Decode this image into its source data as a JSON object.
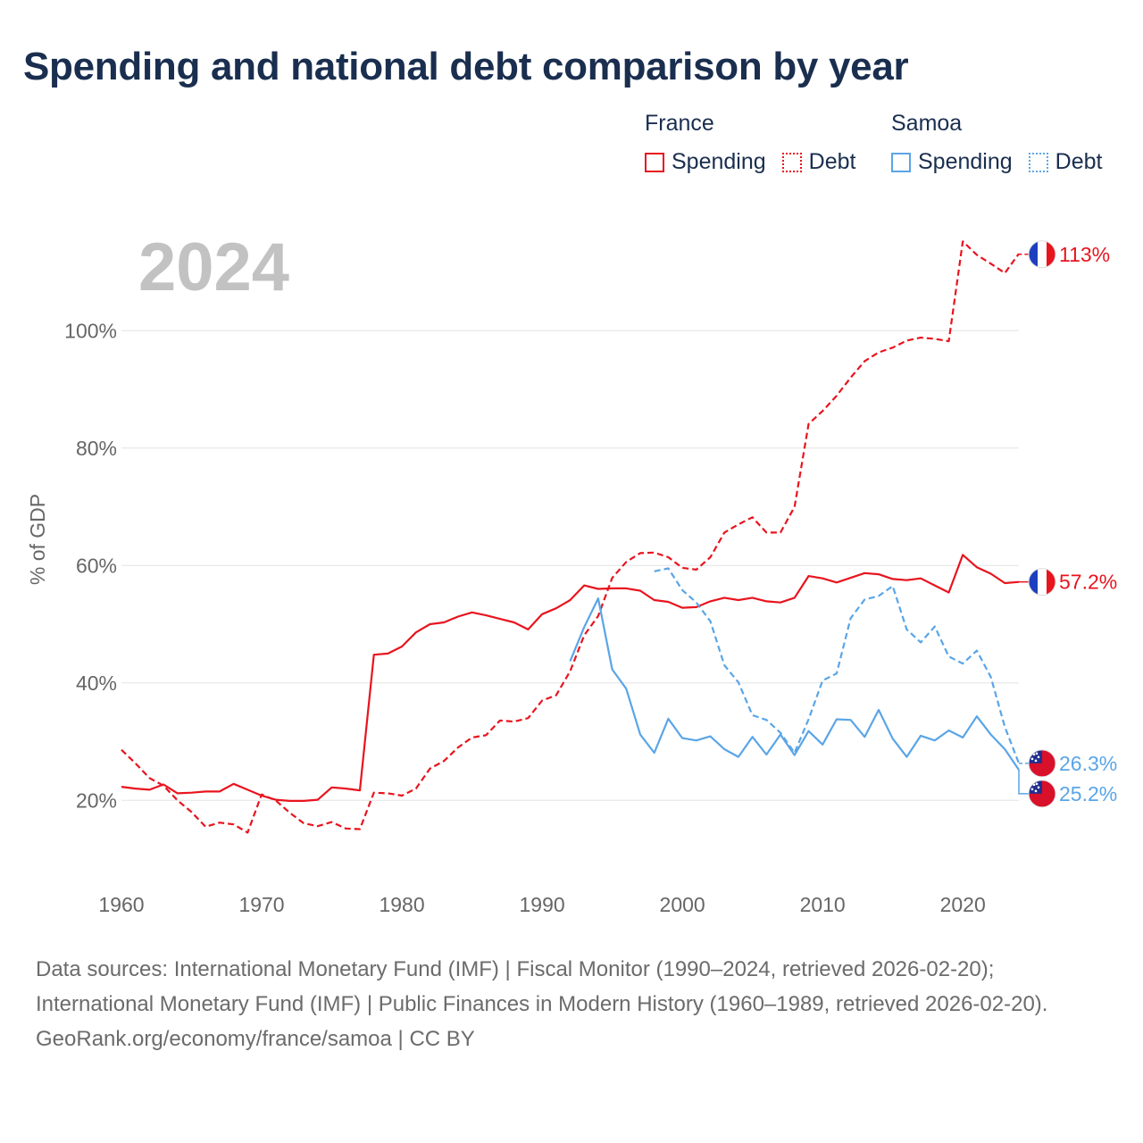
{
  "title": "Spending and national debt comparison by year",
  "legend": {
    "groups": [
      {
        "country": "France",
        "color": "#e8141e",
        "items": [
          "Spending",
          "Debt"
        ]
      },
      {
        "country": "Samoa",
        "color": "#5aa5e6",
        "items": [
          "Spending",
          "Debt"
        ]
      }
    ]
  },
  "year_label": "2024",
  "footer": {
    "sources": "Data sources: International Monetary Fund (IMF) | Fiscal Monitor (1990–2024, retrieved 2026-02-20); International Monetary Fund (IMF) | Public Finances in Modern History (1960–1989, retrieved 2026-02-20).",
    "credit": "GeoRank.org/economy/france/samoa | CC BY"
  },
  "chart_data": {
    "type": "line",
    "title": "Spending and national debt comparison by year",
    "xlabel": "",
    "ylabel": "% of GDP",
    "xlim": [
      1960,
      2024
    ],
    "ylim": [
      8,
      118
    ],
    "x_ticks": [
      1960,
      1970,
      1980,
      1990,
      2000,
      2010,
      2020
    ],
    "y_ticks": [
      20,
      40,
      60,
      80,
      100
    ],
    "y_tick_labels": [
      "20%",
      "40%",
      "60%",
      "80%",
      "100%"
    ],
    "grid": "horizontal",
    "end_labels": [
      {
        "series": "France Debt",
        "label": "113%",
        "value": 113
      },
      {
        "series": "France Spending",
        "label": "57.2%",
        "value": 57.2
      },
      {
        "series": "Samoa Debt",
        "label": "26.3%",
        "value": 26.3
      },
      {
        "series": "Samoa Spending",
        "label": "25.2%",
        "value": 25.2
      }
    ],
    "series": [
      {
        "name": "France Spending",
        "country": "France",
        "measure": "Spending",
        "color": "#e8141e",
        "dash": "solid",
        "x": [
          1960,
          1961,
          1962,
          1963,
          1964,
          1965,
          1966,
          1967,
          1968,
          1969,
          1970,
          1971,
          1972,
          1973,
          1974,
          1975,
          1976,
          1977,
          1978,
          1979,
          1980,
          1981,
          1982,
          1983,
          1984,
          1985,
          1986,
          1987,
          1988,
          1989,
          1990,
          1991,
          1992,
          1993,
          1994,
          1995,
          1996,
          1997,
          1998,
          1999,
          2000,
          2001,
          2002,
          2003,
          2004,
          2005,
          2006,
          2007,
          2008,
          2009,
          2010,
          2011,
          2012,
          2013,
          2014,
          2015,
          2016,
          2017,
          2018,
          2019,
          2020,
          2021,
          2022,
          2023,
          2024
        ],
        "values": [
          22.3,
          22.0,
          21.8,
          22.7,
          21.2,
          21.3,
          21.5,
          21.5,
          22.8,
          21.8,
          20.8,
          20.1,
          19.9,
          19.9,
          20.1,
          22.2,
          22.0,
          21.7,
          44.8,
          45.0,
          46.2,
          48.6,
          50.0,
          50.3,
          51.3,
          52.0,
          51.5,
          50.9,
          50.3,
          49.1,
          51.7,
          52.7,
          54.1,
          56.6,
          56.0,
          56.1,
          56.1,
          55.7,
          54.1,
          53.8,
          52.8,
          52.9,
          53.9,
          54.5,
          54.1,
          54.5,
          53.9,
          53.7,
          54.5,
          58.2,
          57.8,
          57.1,
          57.9,
          58.7,
          58.5,
          57.7,
          57.5,
          57.8,
          56.6,
          55.4,
          61.8,
          59.7,
          58.6,
          57.0,
          57.2
        ]
      },
      {
        "name": "France Debt",
        "country": "France",
        "measure": "Debt",
        "color": "#e8141e",
        "dash": "dashed",
        "x": [
          1960,
          1961,
          1962,
          1963,
          1964,
          1965,
          1966,
          1967,
          1968,
          1969,
          1970,
          1971,
          1972,
          1973,
          1974,
          1975,
          1976,
          1977,
          1978,
          1979,
          1980,
          1981,
          1982,
          1983,
          1984,
          1985,
          1986,
          1987,
          1988,
          1989,
          1990,
          1991,
          1992,
          1993,
          1994,
          1995,
          1996,
          1997,
          1998,
          1999,
          2000,
          2001,
          2002,
          2003,
          2004,
          2005,
          2006,
          2007,
          2008,
          2009,
          2010,
          2011,
          2012,
          2013,
          2014,
          2015,
          2016,
          2017,
          2018,
          2019,
          2020,
          2021,
          2022,
          2023,
          2024
        ],
        "values": [
          28.6,
          26.3,
          23.8,
          22.5,
          20.0,
          18.0,
          15.5,
          16.2,
          15.9,
          14.5,
          21.0,
          20.0,
          17.9,
          16.1,
          15.6,
          16.3,
          15.2,
          15.1,
          21.3,
          21.2,
          20.8,
          22.0,
          25.4,
          26.7,
          29.0,
          30.7,
          31.1,
          33.6,
          33.4,
          34.0,
          37.0,
          37.9,
          42.0,
          48.1,
          51.4,
          57.9,
          60.6,
          62.1,
          62.2,
          61.4,
          59.6,
          59.3,
          61.4,
          65.6,
          67.0,
          68.2,
          65.6,
          65.6,
          70.0,
          84.1,
          86.3,
          88.9,
          92.0,
          94.8,
          96.3,
          97.1,
          98.3,
          98.8,
          98.6,
          98.2,
          115.2,
          112.9,
          111.4,
          109.8,
          113.1
        ]
      },
      {
        "name": "Samoa Spending",
        "country": "Samoa",
        "measure": "Spending",
        "color": "#5aa5e6",
        "dash": "solid",
        "x": [
          1992,
          1993,
          1994,
          1995,
          1996,
          1997,
          1998,
          1999,
          2000,
          2001,
          2002,
          2003,
          2004,
          2005,
          2006,
          2007,
          2008,
          2009,
          2010,
          2011,
          2012,
          2013,
          2014,
          2015,
          2016,
          2017,
          2018,
          2019,
          2020,
          2021,
          2022,
          2023,
          2024
        ],
        "values": [
          43.7,
          49.5,
          54.4,
          42.3,
          39.0,
          31.2,
          28.1,
          33.9,
          30.6,
          30.2,
          30.9,
          28.7,
          27.4,
          30.8,
          27.8,
          31.2,
          27.7,
          31.8,
          29.5,
          33.8,
          33.7,
          30.8,
          35.4,
          30.5,
          27.4,
          31.0,
          30.2,
          31.9,
          30.7,
          34.3,
          31.2,
          28.7,
          25.2
        ]
      },
      {
        "name": "Samoa Debt",
        "country": "Samoa",
        "measure": "Debt",
        "color": "#5aa5e6",
        "dash": "dashed",
        "x": [
          1998,
          1999,
          2000,
          2001,
          2002,
          2003,
          2004,
          2005,
          2006,
          2007,
          2008,
          2009,
          2010,
          2011,
          2012,
          2013,
          2014,
          2015,
          2016,
          2017,
          2018,
          2019,
          2020,
          2021,
          2022,
          2023,
          2024
        ],
        "values": [
          59.0,
          59.5,
          55.8,
          53.7,
          50.5,
          43.0,
          40.1,
          34.5,
          33.7,
          31.5,
          28.1,
          33.8,
          40.4,
          41.6,
          51.0,
          54.2,
          54.8,
          56.5,
          49.1,
          46.9,
          49.6,
          44.5,
          43.3,
          45.5,
          41.0,
          32.5,
          26.3
        ]
      }
    ]
  }
}
